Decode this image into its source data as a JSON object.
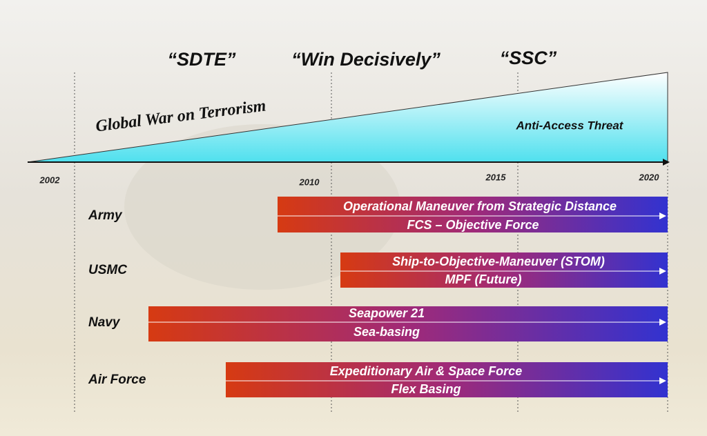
{
  "eras": [
    "“SDTE”",
    "“Win Decisively”",
    "“SSC”"
  ],
  "threats": {
    "rising": "Global War on Terrorism",
    "end": "Anti-Access Threat"
  },
  "years": [
    "2002",
    "2010",
    "2015",
    "2020"
  ],
  "rows": [
    {
      "label": "Army",
      "lines": [
        "Operational Maneuver from Strategic Distance",
        "FCS – Objective Force"
      ]
    },
    {
      "label": "USMC",
      "lines": [
        "Ship-to-Objective-Maneuver (STOM)",
        "MPF (Future)"
      ]
    },
    {
      "label": "Navy",
      "lines": [
        "Seapower 21",
        "Sea-basing"
      ]
    },
    {
      "label": "Air Force",
      "lines": [
        "Expeditionary Air & Space Force",
        "Flex Basing"
      ]
    }
  ]
}
